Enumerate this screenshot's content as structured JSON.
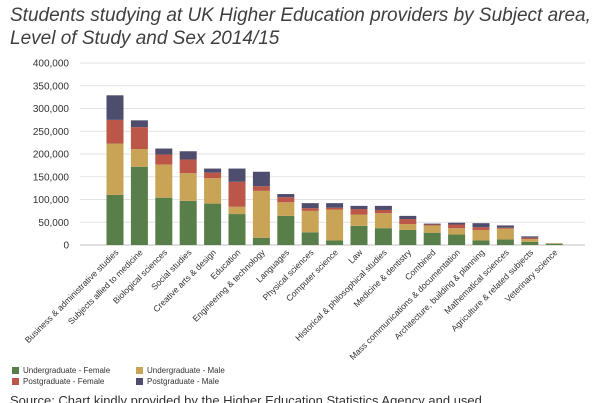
{
  "title": "Students studying at UK Higher Education providers by Subject area, Level of Study and Sex 2014/15",
  "source": "Source: Chart kindly provided by the Higher Education Statistics Agency and used",
  "chart_data": {
    "type": "bar",
    "stacked": true,
    "categories": [
      "Business & administrative studies",
      "Subjects allied to medicine",
      "Biological sciences",
      "Social studies",
      "Creative arts & design",
      "Education",
      "Engineering & technology",
      "Languages",
      "Physical sciences",
      "Computer science",
      "Law",
      "Historical & philosophical studies",
      "Medicine & dentistry",
      "Combined",
      "Mass communications & documentation",
      "Architecture, building & planning",
      "Mathematical sciences",
      "Agriculture & related subjects",
      "Veterinary science"
    ],
    "series": [
      {
        "name": "Undergraduate - Female",
        "color": "#587e4a",
        "values": [
          110000,
          172000,
          104000,
          97000,
          91000,
          68000,
          16000,
          64000,
          28000,
          10000,
          42000,
          37000,
          33000,
          27000,
          23000,
          10000,
          12000,
          7000,
          3000
        ]
      },
      {
        "name": "Undergraduate - Male",
        "color": "#c9a356",
        "values": [
          113000,
          39000,
          73000,
          61000,
          56000,
          16000,
          103000,
          30000,
          47000,
          68000,
          25000,
          33000,
          13000,
          16000,
          14000,
          23000,
          24000,
          6000,
          1000
        ]
      },
      {
        "name": "Postgraduate - Female",
        "color": "#bb5649",
        "values": [
          52000,
          48000,
          22000,
          30000,
          12000,
          55000,
          10000,
          11000,
          6000,
          4000,
          12000,
          7000,
          11000,
          2000,
          8000,
          6000,
          2000,
          3000,
          0
        ]
      },
      {
        "name": "Postgraduate - Male",
        "color": "#4f4d6d",
        "values": [
          54000,
          15000,
          13000,
          18000,
          9000,
          29000,
          32000,
          7000,
          11000,
          10000,
          7000,
          9000,
          7000,
          2000,
          4000,
          9000,
          5000,
          3000,
          0
        ]
      }
    ],
    "y_ticks": [
      "0",
      "50,000",
      "100,000",
      "150,000",
      "200,000",
      "250,000",
      "300,000",
      "350,000",
      "400,000"
    ],
    "ylim": [
      0,
      400000
    ],
    "grid": true,
    "legend_position": "bottom-left"
  }
}
